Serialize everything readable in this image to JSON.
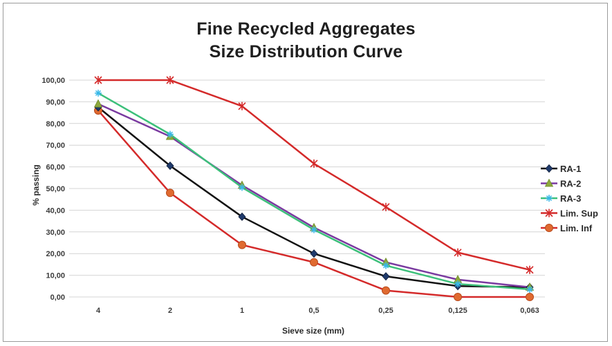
{
  "chart_data": {
    "type": "line",
    "title_lines": [
      "Fine Recycled Aggregates",
      "Size Distribution Curve"
    ],
    "xlabel": "Sieve size (mm)",
    "ylabel": "% passing",
    "categories": [
      "4",
      "2",
      "1",
      "0,5",
      "0,25",
      "0,125",
      "0,063"
    ],
    "yticks": [
      "0,00",
      "10,00",
      "20,00",
      "30,00",
      "40,00",
      "50,00",
      "60,00",
      "70,00",
      "80,00",
      "90,00",
      "100,00"
    ],
    "ylim": [
      0,
      100
    ],
    "grid": "horizontal",
    "legend_position": "right",
    "series": [
      {
        "name": "RA-1",
        "color": "#111111",
        "marker": "diamond",
        "marker_color": "#1f3a6b",
        "values": [
          87.5,
          60.5,
          37,
          20,
          9.5,
          5,
          4.5
        ]
      },
      {
        "name": "RA-2",
        "color": "#7a3aa0",
        "marker": "triangle",
        "marker_color": "#8ea83c",
        "values": [
          89,
          74,
          51.5,
          32,
          16,
          8,
          4.5
        ]
      },
      {
        "name": "RA-3",
        "color": "#3cc07a",
        "marker": "star",
        "marker_color": "#38b8e8",
        "values": [
          94,
          75,
          50.5,
          31,
          14.5,
          6,
          3.5
        ]
      },
      {
        "name": "Lim. Sup",
        "color": "#d42a2a",
        "marker": "x",
        "marker_color": "#d42a2a",
        "values": [
          100,
          100,
          88,
          61.5,
          41.5,
          20.5,
          12.5
        ]
      },
      {
        "name": "Lim. Inf",
        "color": "#d42a2a",
        "marker": "circle",
        "marker_color": "#e06a30",
        "values": [
          86,
          48,
          24,
          16,
          3,
          0,
          0
        ]
      }
    ]
  }
}
